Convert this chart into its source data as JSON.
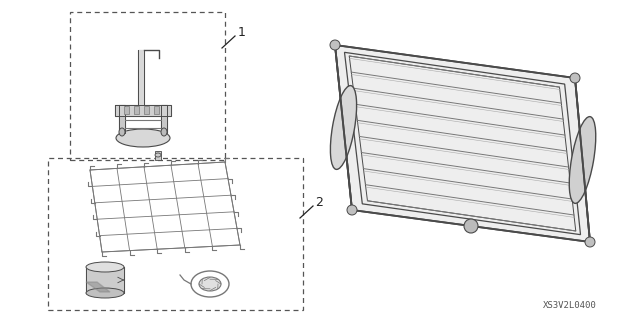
{
  "bg_color": "#ffffff",
  "line_color": "#4a4a4a",
  "mid_line": "#777777",
  "light_line": "#aaaaaa",
  "dashed_box_color": "#555555",
  "text_color": "#222222",
  "part_number_text": "XS3V2L0400",
  "label_1": "1",
  "label_2": "2",
  "figsize": [
    6.4,
    3.19
  ],
  "dpi": 100
}
